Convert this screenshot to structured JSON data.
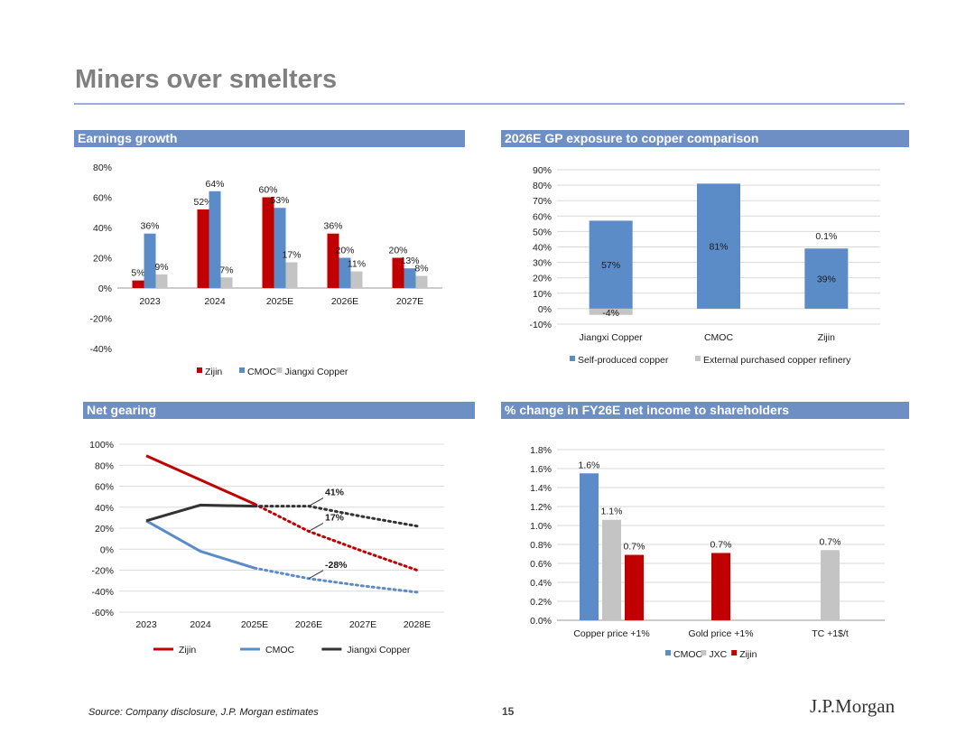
{
  "page": {
    "title": "Miners over smelters",
    "source": "Source: Company disclosure, J.P. Morgan estimates",
    "page_number": "15",
    "brand": "J.P.Morgan"
  },
  "colors": {
    "red": "#c00000",
    "blue": "#5b8cc8",
    "gray": "#c4c4c4",
    "dark": "#333333",
    "header": "#6e8fc4"
  },
  "chart_data": [
    {
      "id": "earnings",
      "type": "bar",
      "title": "Earnings growth",
      "categories": [
        "2023",
        "2024",
        "2025E",
        "2026E",
        "2027E"
      ],
      "series": [
        {
          "name": "Zijin",
          "color": "#c00000",
          "values": [
            5,
            52,
            60,
            36,
            20
          ],
          "labels": [
            "5%",
            "52%",
            "60%",
            "36%",
            "20%"
          ]
        },
        {
          "name": "CMOC",
          "color": "#5b8cc8",
          "values": [
            36,
            64,
            53,
            20,
            13
          ],
          "labels": [
            "36%",
            "64%",
            "53%",
            "20%",
            "13%"
          ]
        },
        {
          "name": "Jiangxi Copper",
          "color": "#c4c4c4",
          "values": [
            9,
            7,
            17,
            11,
            8
          ],
          "labels": [
            "9%",
            "7%",
            "17%",
            "11%",
            "8%"
          ]
        }
      ],
      "ylim": [
        -40,
        80
      ],
      "yticks": [
        "80%",
        "60%",
        "40%",
        "20%",
        "0%",
        "-20%",
        "-40%"
      ],
      "legend": "bottom"
    },
    {
      "id": "gp",
      "type": "bar",
      "title": "2026E GP exposure to copper comparison",
      "categories": [
        "Jiangxi Copper",
        "CMOC",
        "Zijin"
      ],
      "series": [
        {
          "name": "Self-produced copper",
          "color": "#5b8cc8",
          "values": [
            57,
            81,
            39
          ],
          "labels": [
            "57%",
            "81%",
            "39%"
          ]
        },
        {
          "name": "External purchased copper refinery",
          "color": "#c4c4c4",
          "values": [
            -4,
            0,
            0.1
          ],
          "labels": [
            "-4%",
            "",
            "0.1%"
          ]
        }
      ],
      "stacked": true,
      "ylim": [
        -10,
        90
      ],
      "yticks": [
        "90%",
        "80%",
        "70%",
        "60%",
        "50%",
        "40%",
        "30%",
        "20%",
        "10%",
        "0%",
        "-10%"
      ],
      "legend": "bottom"
    },
    {
      "id": "gearing",
      "type": "line",
      "title": "Net gearing",
      "categories": [
        "2023",
        "2024",
        "2025E",
        "2026E",
        "2027E",
        "2028E"
      ],
      "series": [
        {
          "name": "Zijin",
          "color": "#c00000",
          "values": [
            89,
            66,
            43,
            17,
            -2,
            -20
          ],
          "actual_until": 2
        },
        {
          "name": "CMOC",
          "color": "#5b8cc8",
          "values": [
            27,
            -2,
            -18,
            -28,
            -35,
            -41
          ],
          "actual_until": 2
        },
        {
          "name": "Jiangxi Copper",
          "color": "#333333",
          "values": [
            27,
            42,
            41,
            41,
            31,
            22
          ],
          "actual_until": 2
        }
      ],
      "annotations": [
        {
          "text": "41%",
          "series": "Jiangxi Copper",
          "x": "2026E"
        },
        {
          "text": "17%",
          "series": "Zijin",
          "x": "2026E"
        },
        {
          "text": "-28%",
          "series": "CMOC",
          "x": "2026E"
        }
      ],
      "ylim": [
        -60,
        100
      ],
      "yticks": [
        "100%",
        "80%",
        "60%",
        "40%",
        "20%",
        "0%",
        "-20%",
        "-40%",
        "-60%"
      ],
      "legend": "bottom"
    },
    {
      "id": "sensitivity",
      "type": "bar",
      "title": "% change in FY26E net income to shareholders",
      "categories": [
        "Copper price +1%",
        "Gold price +1%",
        "TC +1$/t"
      ],
      "series": [
        {
          "name": "CMOC",
          "color": "#5b8cc8",
          "values": [
            1.55,
            null,
            null
          ],
          "labels": [
            "1.6%",
            "",
            ""
          ]
        },
        {
          "name": "JXC",
          "color": "#c4c4c4",
          "values": [
            1.06,
            null,
            0.74
          ],
          "labels": [
            "1.1%",
            "",
            "0.7%"
          ]
        },
        {
          "name": "Zijin",
          "color": "#c00000",
          "values": [
            0.69,
            0.71,
            null
          ],
          "labels": [
            "0.7%",
            "0.7%",
            ""
          ]
        }
      ],
      "ylim": [
        0,
        1.8
      ],
      "yticks": [
        "1.8%",
        "1.6%",
        "1.4%",
        "1.2%",
        "1.0%",
        "0.8%",
        "0.6%",
        "0.4%",
        "0.2%",
        "0.0%"
      ],
      "legend": "bottom"
    }
  ]
}
